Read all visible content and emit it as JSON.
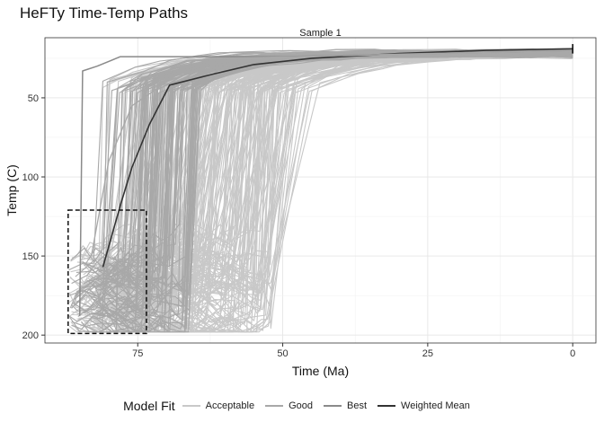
{
  "title": "HeFTy Time-Temp Paths",
  "chart_data": {
    "type": "line",
    "title": "HeFTy Time-Temp Paths",
    "facet": "Sample 1",
    "xlabel": "Time (Ma)",
    "ylabel": "Temp (C)",
    "xlim": [
      91,
      -4
    ],
    "ylim": [
      205,
      12
    ],
    "x_reversed": true,
    "y_reversed": true,
    "xticks": [
      75,
      50,
      25,
      0
    ],
    "yticks": [
      50,
      100,
      150,
      200
    ],
    "grid": true,
    "legend_position": "bottom",
    "legend_title": "Model Fit",
    "legend": [
      {
        "label": "Acceptable",
        "color": "#c8c8c8"
      },
      {
        "label": "Good",
        "color": "#a8a8a8"
      },
      {
        "label": "Best",
        "color": "#8a8a8a"
      },
      {
        "label": "Weighted Mean",
        "color": "#333333"
      }
    ],
    "constraint_box": {
      "x": [
        87,
        73.5
      ],
      "y": [
        121,
        199
      ]
    },
    "series": [
      {
        "name": "Weighted Mean",
        "color": "#333333",
        "x": [
          81,
          78,
          76,
          73,
          69.5,
          62,
          55,
          45,
          30,
          15,
          0
        ],
        "y": [
          157,
          118,
          94,
          67,
          42,
          35,
          29,
          25,
          22,
          20,
          19
        ]
      },
      {
        "name": "Best",
        "color": "#8a8a8a",
        "x": [
          85,
          84.5,
          82,
          78,
          70,
          50,
          0
        ],
        "y": [
          188,
          33,
          30,
          24,
          24,
          24,
          20
        ]
      },
      {
        "name": "Good",
        "color": "#a8a8a8",
        "x": [
          83,
          80,
          76,
          70,
          60,
          0
        ],
        "y": [
          150,
          90,
          55,
          40,
          25,
          20
        ]
      }
    ]
  },
  "colors": {
    "acceptable": "#c8c8c8",
    "good": "#a8a8a8",
    "best": "#8a8a8a",
    "mean": "#333333",
    "grid": "#ebebeb"
  }
}
